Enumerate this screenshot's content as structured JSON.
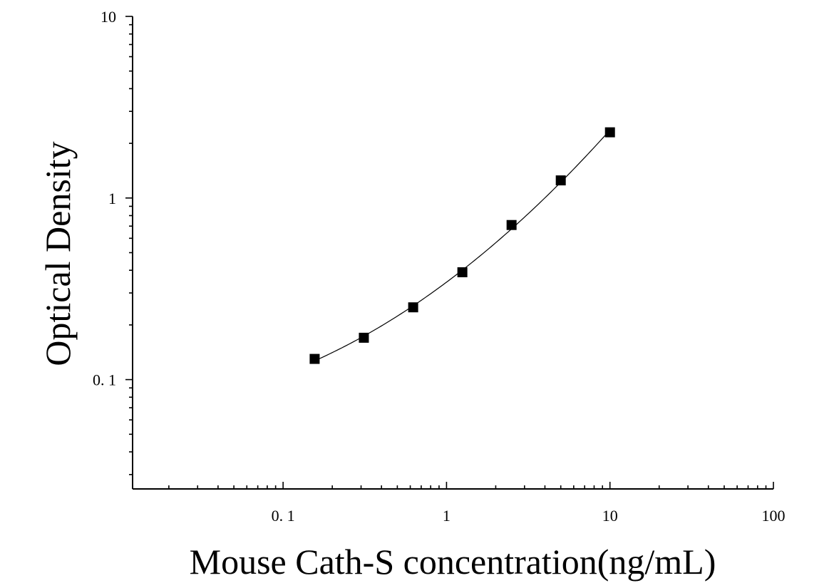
{
  "chart_data": {
    "type": "scatter",
    "xlabel": "Mouse Cath-S concentration(ng/mL)",
    "ylabel": "Optical Density",
    "x_scale": "log",
    "y_scale": "log",
    "xlim": [
      0.012,
      100
    ],
    "ylim": [
      0.025,
      10
    ],
    "x_ticks": [
      {
        "value": 0.1,
        "label": "0. 1"
      },
      {
        "value": 1,
        "label": "1"
      },
      {
        "value": 10,
        "label": "10"
      },
      {
        "value": 100,
        "label": "100"
      }
    ],
    "y_ticks": [
      {
        "value": 0.1,
        "label": "0. 1"
      },
      {
        "value": 1,
        "label": "1"
      },
      {
        "value": 10,
        "label": "10"
      }
    ],
    "grid": false,
    "series": [
      {
        "x": [
          0.156,
          0.312,
          0.625,
          1.25,
          2.5,
          5,
          10
        ],
        "y": [
          0.13,
          0.17,
          0.25,
          0.39,
          0.71,
          1.25,
          2.3
        ]
      }
    ],
    "fit_curve": true,
    "marker": "square",
    "color": "#000000"
  }
}
